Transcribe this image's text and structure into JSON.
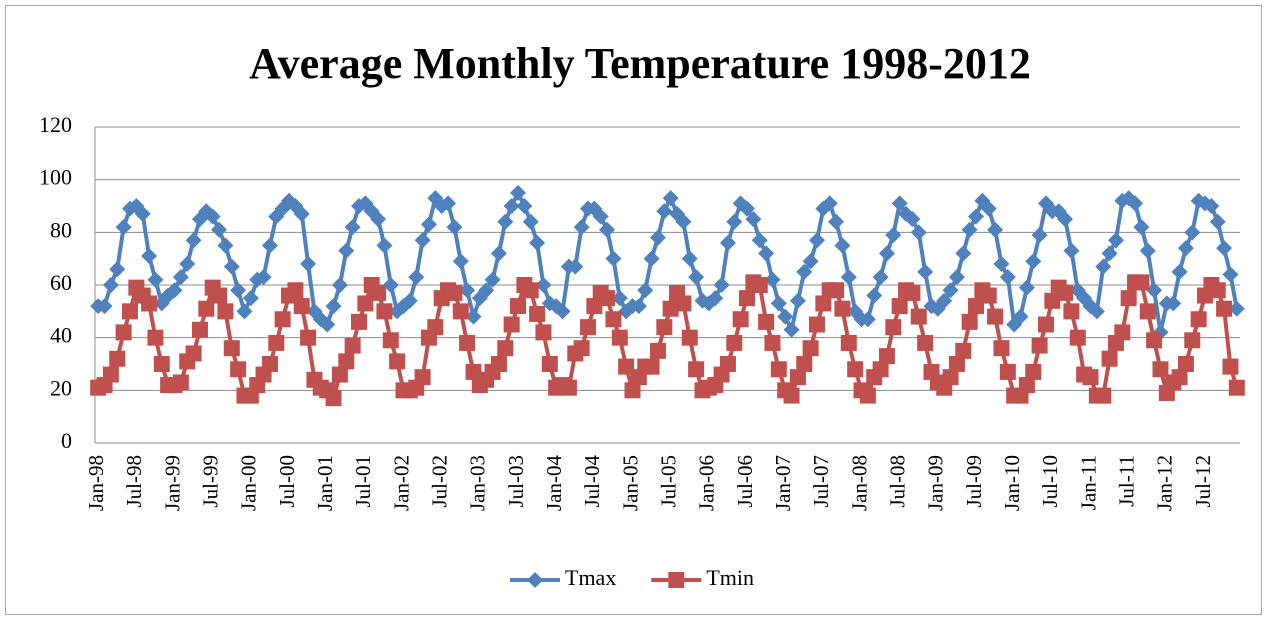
{
  "chart_data": {
    "type": "line",
    "title": "Average Monthly Temperature 1998-2012",
    "categories": [
      "Jan-98",
      null,
      null,
      null,
      null,
      null,
      "Jul-98",
      null,
      null,
      null,
      null,
      null,
      "Jan-99",
      null,
      null,
      null,
      null,
      null,
      "Jul-99",
      null,
      null,
      null,
      null,
      null,
      "Jan-00",
      null,
      null,
      null,
      null,
      null,
      "Jul-00",
      null,
      null,
      null,
      null,
      null,
      "Jan-01",
      null,
      null,
      null,
      null,
      null,
      "Jul-01",
      null,
      null,
      null,
      null,
      null,
      "Jan-02",
      null,
      null,
      null,
      null,
      null,
      "Jul-02",
      null,
      null,
      null,
      null,
      null,
      "Jan-03",
      null,
      null,
      null,
      null,
      null,
      "Jul-03",
      null,
      null,
      null,
      null,
      null,
      "Jan-04",
      null,
      null,
      null,
      null,
      null,
      "Jul-04",
      null,
      null,
      null,
      null,
      null,
      "Jan-05",
      null,
      null,
      null,
      null,
      null,
      "Jul-05",
      null,
      null,
      null,
      null,
      null,
      "Jan-06",
      null,
      null,
      null,
      null,
      null,
      "Jul-06",
      null,
      null,
      null,
      null,
      null,
      "Jan-07",
      null,
      null,
      null,
      null,
      null,
      "Jul-07",
      null,
      null,
      null,
      null,
      null,
      "Jan-08",
      null,
      null,
      null,
      null,
      null,
      "Jul-08",
      null,
      null,
      null,
      null,
      null,
      "Jan-09",
      null,
      null,
      null,
      null,
      null,
      "Jul-09",
      null,
      null,
      null,
      null,
      null,
      "Jan-10",
      null,
      null,
      null,
      null,
      null,
      "Jul-10",
      null,
      null,
      null,
      null,
      null,
      "Jan-11",
      null,
      null,
      null,
      null,
      null,
      "Jul-11",
      null,
      null,
      null,
      null,
      null,
      "Jan-12",
      null,
      null,
      null,
      null,
      null,
      "Jul-12",
      null,
      null,
      null,
      null,
      null
    ],
    "series": [
      {
        "name": "Tmax",
        "color": "#4f81bd",
        "marker": "diamond",
        "values": [
          52,
          52,
          60,
          66,
          82,
          89,
          90,
          87,
          71,
          62,
          53,
          56,
          58,
          63,
          68,
          77,
          85,
          88,
          86,
          81,
          75,
          67,
          58,
          50,
          55,
          62,
          63,
          75,
          86,
          89,
          92,
          90,
          87,
          68,
          50,
          47,
          45,
          52,
          60,
          73,
          82,
          90,
          91,
          88,
          85,
          75,
          60,
          50,
          52,
          54,
          63,
          77,
          83,
          93,
          90,
          91,
          82,
          69,
          58,
          48,
          55,
          58,
          62,
          72,
          84,
          90,
          95,
          90,
          84,
          76,
          60,
          53,
          52,
          50,
          67,
          67,
          82,
          89,
          89,
          86,
          81,
          70,
          55,
          50,
          52,
          52,
          58,
          70,
          78,
          88,
          93,
          87,
          84,
          70,
          63,
          54,
          53,
          55,
          60,
          76,
          84,
          91,
          89,
          85,
          77,
          72,
          62,
          53,
          48,
          43,
          54,
          65,
          69,
          77,
          89,
          91,
          84,
          75,
          63,
          50,
          47,
          47,
          56,
          63,
          72,
          79,
          91,
          87,
          85,
          80,
          65,
          52,
          51,
          54,
          58,
          63,
          72,
          81,
          86,
          92,
          89,
          81,
          68,
          63,
          45,
          48,
          59,
          69,
          79,
          91,
          88,
          88,
          85,
          73,
          58,
          55,
          52,
          50,
          67,
          72,
          77,
          92,
          93,
          91,
          82,
          73,
          58,
          42,
          53,
          53,
          65,
          74,
          80,
          92,
          91,
          90,
          84,
          74,
          64,
          51
        ]
      },
      {
        "name": "Tmin",
        "color": "#c0504d",
        "marker": "square",
        "values": [
          21,
          22,
          26,
          32,
          42,
          50,
          59,
          56,
          53,
          40,
          30,
          22,
          22,
          23,
          31,
          34,
          43,
          51,
          59,
          56,
          50,
          36,
          28,
          18,
          18,
          22,
          26,
          30,
          38,
          47,
          56,
          58,
          52,
          40,
          24,
          21,
          20,
          17,
          26,
          31,
          37,
          46,
          53,
          60,
          57,
          50,
          39,
          31,
          20,
          20,
          21,
          25,
          40,
          44,
          55,
          58,
          57,
          50,
          38,
          27,
          22,
          24,
          27,
          30,
          36,
          45,
          52,
          60,
          58,
          49,
          42,
          30,
          21,
          22,
          21,
          34,
          36,
          44,
          52,
          57,
          55,
          47,
          40,
          29,
          20,
          25,
          29,
          29,
          35,
          44,
          51,
          57,
          53,
          40,
          28,
          20,
          21,
          22,
          26,
          30,
          38,
          47,
          55,
          61,
          60,
          46,
          38,
          28,
          20,
          18,
          25,
          30,
          36,
          45,
          53,
          58,
          58,
          51,
          38,
          28,
          20,
          18,
          25,
          28,
          33,
          44,
          52,
          58,
          57,
          48,
          38,
          27,
          23,
          21,
          25,
          30,
          35,
          46,
          52,
          58,
          56,
          48,
          36,
          27,
          18,
          18,
          22,
          27,
          37,
          45,
          54,
          59,
          57,
          50,
          40,
          26,
          25,
          18,
          18,
          32,
          38,
          42,
          55,
          61,
          61,
          50,
          39,
          28,
          19,
          23,
          25,
          30,
          39,
          47,
          56,
          60,
          58,
          51,
          29,
          21
        ]
      }
    ],
    "ylim": [
      0,
      120
    ],
    "yticks": [
      0,
      20,
      40,
      60,
      80,
      100,
      120
    ],
    "grid": true,
    "legend": "bottom"
  }
}
